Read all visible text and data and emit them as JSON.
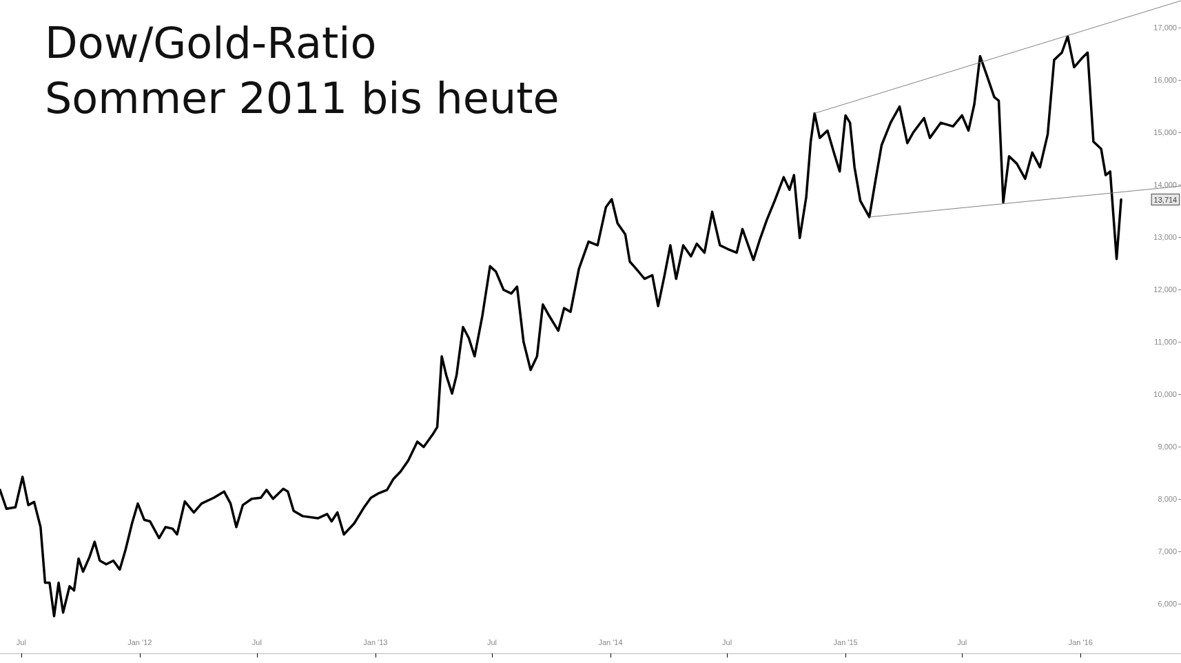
{
  "chart_data": {
    "type": "line",
    "title": "Dow/Gold-Ratio",
    "subtitle": "Sommer 2011 bis heute",
    "xlim": [
      "2011-05-29",
      "2016-06-05"
    ],
    "xticks": [
      {
        "value": "2011-07-01",
        "label": "Jul"
      },
      {
        "value": "2012-01-01",
        "label": "Jan '12"
      },
      {
        "value": "2012-07-01",
        "label": "Jul"
      },
      {
        "value": "2013-01-01",
        "label": "Jan '13"
      },
      {
        "value": "2013-07-01",
        "label": "Jul"
      },
      {
        "value": "2014-01-01",
        "label": "Jan '14"
      },
      {
        "value": "2014-07-01",
        "label": "Jul"
      },
      {
        "value": "2015-01-01",
        "label": "Jan '15"
      },
      {
        "value": "2015-07-01",
        "label": "Jul"
      },
      {
        "value": "2016-01-01",
        "label": "Jan '16"
      }
    ],
    "ylim": [
      5050,
      17510
    ],
    "yticks": [
      {
        "value": 6000,
        "label": "6,000"
      },
      {
        "value": 7000,
        "label": "7,000"
      },
      {
        "value": 8000,
        "label": "8,000"
      },
      {
        "value": 9000,
        "label": "9,000"
      },
      {
        "value": 10000,
        "label": "10,000"
      },
      {
        "value": 11000,
        "label": "11,000"
      },
      {
        "value": 12000,
        "label": "12,000"
      },
      {
        "value": 13000,
        "label": "13,000"
      },
      {
        "value": 14000,
        "label": "14,000"
      },
      {
        "value": 15000,
        "label": "15,000"
      },
      {
        "value": 16000,
        "label": "16,000"
      },
      {
        "value": 17000,
        "label": "17,000"
      }
    ],
    "grid": false,
    "marker": "none",
    "line_style": "solid",
    "annotations": [
      "13,714"
    ],
    "series": [
      {
        "color": "#000000",
        "x": [
          "2011-05-29",
          "2011-06-08",
          "2011-06-22",
          "2011-07-03",
          "2011-07-12",
          "2011-07-21",
          "2011-07-31",
          "2011-08-07",
          "2011-08-14",
          "2011-08-21",
          "2011-08-28",
          "2011-09-04",
          "2011-09-14",
          "2011-09-21",
          "2011-09-28",
          "2011-10-05",
          "2011-10-15",
          "2011-10-23",
          "2011-10-31",
          "2011-11-10",
          "2011-11-21",
          "2011-12-01",
          "2011-12-10",
          "2011-12-20",
          "2011-12-29",
          "2012-01-08",
          "2012-01-17",
          "2012-01-31",
          "2012-02-10",
          "2012-02-21",
          "2012-02-28",
          "2012-03-11",
          "2012-03-25",
          "2012-04-06",
          "2012-04-25",
          "2012-05-11",
          "2012-05-21",
          "2012-05-30",
          "2012-06-09",
          "2012-06-23",
          "2012-07-07",
          "2012-07-16",
          "2012-07-26",
          "2012-08-11",
          "2012-08-18",
          "2012-08-27",
          "2012-09-10",
          "2012-10-04",
          "2012-10-18",
          "2012-10-25",
          "2012-11-03",
          "2012-11-13",
          "2012-11-29",
          "2012-12-15",
          "2012-12-25",
          "2013-01-05",
          "2013-01-19",
          "2013-01-29",
          "2013-02-09",
          "2013-02-21",
          "2013-03-07",
          "2013-03-17",
          "2013-03-31",
          "2013-04-07",
          "2013-04-14",
          "2013-04-21",
          "2013-04-30",
          "2013-05-07",
          "2013-05-17",
          "2013-05-26",
          "2013-06-04",
          "2013-06-16",
          "2013-06-28",
          "2013-07-07",
          "2013-07-19",
          "2013-07-31",
          "2013-08-09",
          "2013-08-19",
          "2013-08-30",
          "2013-09-09",
          "2013-09-18",
          "2013-09-28",
          "2013-10-12",
          "2013-10-21",
          "2013-10-31",
          "2013-11-13",
          "2013-11-28",
          "2013-12-12",
          "2013-12-25",
          "2014-01-03",
          "2014-01-12",
          "2014-01-24",
          "2014-01-31",
          "2014-02-10",
          "2014-02-23",
          "2014-03-07",
          "2014-03-16",
          "2014-03-26",
          "2014-04-04",
          "2014-04-13",
          "2014-04-24",
          "2014-05-06",
          "2014-05-15",
          "2014-05-27",
          "2014-06-08",
          "2014-06-20",
          "2014-07-02",
          "2014-07-16",
          "2014-07-25",
          "2014-08-11",
          "2014-08-21",
          "2014-09-01",
          "2014-09-13",
          "2014-09-27",
          "2014-10-06",
          "2014-10-13",
          "2014-10-22",
          "2014-11-01",
          "2014-11-08",
          "2014-11-14",
          "2014-11-22",
          "2014-12-04",
          "2014-12-14",
          "2014-12-23",
          "2015-01-01",
          "2015-01-08",
          "2015-01-15",
          "2015-01-24",
          "2015-02-07",
          "2015-02-17",
          "2015-02-26",
          "2015-03-12",
          "2015-03-26",
          "2015-04-07",
          "2015-04-16",
          "2015-05-03",
          "2015-05-12",
          "2015-05-29",
          "2015-06-17",
          "2015-07-01",
          "2015-07-11",
          "2015-07-20",
          "2015-07-29",
          "2015-08-08",
          "2015-08-20",
          "2015-08-27",
          "2015-09-03",
          "2015-09-12",
          "2015-09-24",
          "2015-10-07",
          "2015-10-18",
          "2015-10-30",
          "2015-11-11",
          "2015-11-21",
          "2015-12-03",
          "2015-12-12",
          "2015-12-22",
          "2016-01-03",
          "2016-01-12",
          "2016-01-21",
          "2016-02-02",
          "2016-02-09",
          "2016-02-16",
          "2016-02-21",
          "2016-02-26",
          "2016-03-04"
        ],
        "values": [
          8170,
          7810,
          7840,
          8420,
          7880,
          7940,
          7460,
          6400,
          6400,
          5760,
          6400,
          5830,
          6330,
          6250,
          6860,
          6610,
          6890,
          7180,
          6820,
          6750,
          6820,
          6650,
          7030,
          7530,
          7910,
          7600,
          7570,
          7250,
          7460,
          7430,
          7320,
          7950,
          7740,
          7910,
          8020,
          8140,
          7910,
          7460,
          7880,
          8000,
          8020,
          8170,
          8000,
          8190,
          8140,
          7770,
          7670,
          7630,
          7710,
          7570,
          7740,
          7320,
          7530,
          7850,
          8020,
          8100,
          8170,
          8380,
          8520,
          8730,
          9090,
          8990,
          9230,
          9370,
          10720,
          10360,
          10010,
          10360,
          11280,
          11070,
          10720,
          11490,
          12440,
          12340,
          11990,
          11920,
          12050,
          11000,
          10460,
          10720,
          11710,
          11490,
          11210,
          11640,
          11570,
          12390,
          12910,
          12840,
          13570,
          13720,
          13260,
          13050,
          12530,
          12390,
          12200,
          12270,
          11680,
          12270,
          12840,
          12200,
          12840,
          12630,
          12870,
          12700,
          13480,
          12840,
          12770,
          12700,
          13150,
          12560,
          12950,
          13330,
          13690,
          14140,
          13900,
          14180,
          12980,
          13760,
          14820,
          15360,
          14890,
          15030,
          14610,
          14250,
          15320,
          15180,
          14330,
          13690,
          13380,
          14110,
          14750,
          15180,
          15490,
          14790,
          14990,
          15270,
          14890,
          15180,
          15110,
          15320,
          15030,
          15530,
          16450,
          16100,
          15670,
          15600,
          13660,
          14540,
          14400,
          14110,
          14610,
          14330,
          14960,
          16380,
          16520,
          16830,
          16240,
          16410,
          16520,
          14820,
          14680,
          14180,
          14250,
          13410,
          12580,
          13714
        ]
      },
      {
        "type": "line",
        "color": "#808080",
        "x": [
          "2014-11-14",
          "2016-06-05"
        ],
        "values": [
          15360,
          17510
        ]
      },
      {
        "type": "line",
        "color": "#808080",
        "x": [
          "2015-02-07",
          "2016-06-05"
        ],
        "values": [
          13380,
          13970
        ]
      }
    ]
  }
}
